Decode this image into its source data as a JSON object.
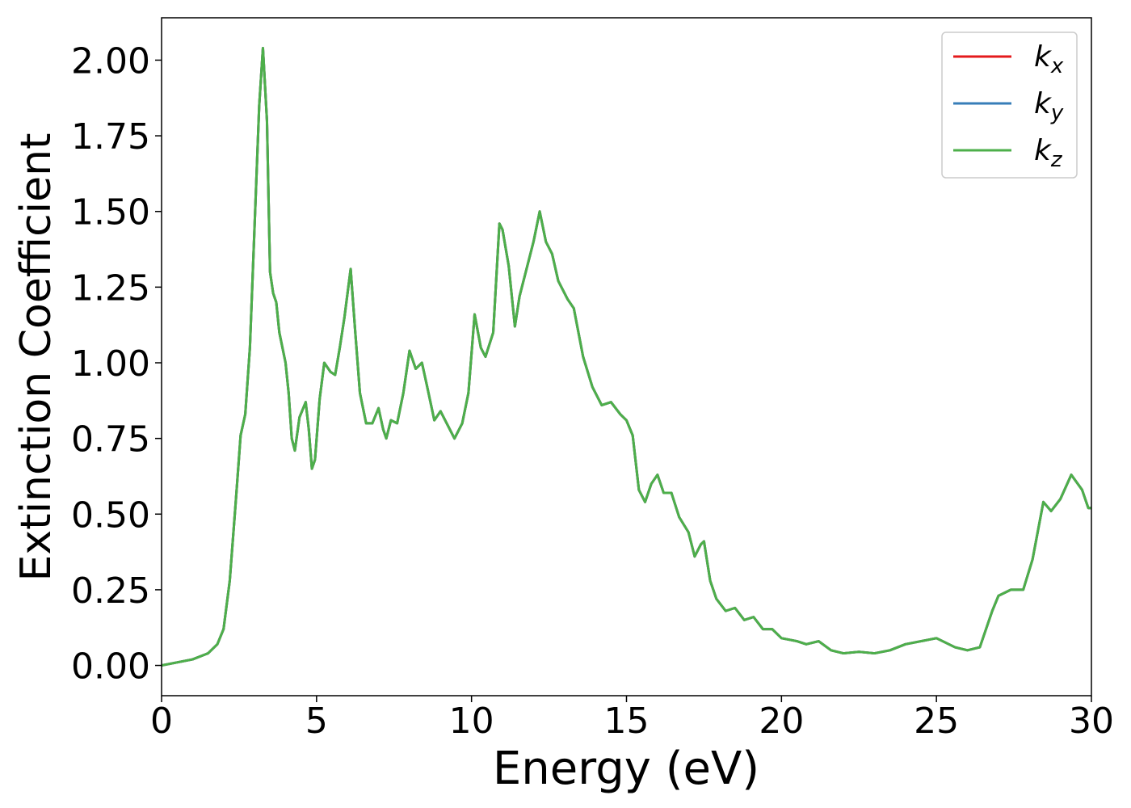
{
  "chart_data": {
    "type": "line",
    "xlabel": "Energy (eV)",
    "ylabel": "Extinction Coefficient",
    "x": [
      0,
      0.5,
      1,
      1.5,
      1.8,
      2.0,
      2.2,
      2.4,
      2.55,
      2.7,
      2.85,
      3.0,
      3.15,
      3.27,
      3.4,
      3.5,
      3.6,
      3.7,
      3.8,
      4.0,
      4.1,
      4.2,
      4.3,
      4.45,
      4.65,
      4.75,
      4.85,
      4.95,
      5.1,
      5.25,
      5.45,
      5.6,
      5.75,
      5.9,
      6.1,
      6.25,
      6.4,
      6.6,
      6.8,
      7.0,
      7.15,
      7.25,
      7.4,
      7.6,
      7.8,
      8.0,
      8.2,
      8.4,
      8.55,
      8.8,
      9.0,
      9.2,
      9.45,
      9.7,
      9.9,
      10.1,
      10.3,
      10.45,
      10.7,
      10.9,
      11.0,
      11.2,
      11.4,
      11.55,
      11.8,
      12.0,
      12.2,
      12.4,
      12.6,
      12.8,
      13.1,
      13.3,
      13.6,
      13.9,
      14.2,
      14.5,
      14.8,
      15.0,
      15.2,
      15.4,
      15.6,
      15.8,
      16.0,
      16.2,
      16.45,
      16.7,
      17.0,
      17.2,
      17.4,
      17.5,
      17.7,
      17.9,
      18.2,
      18.5,
      18.8,
      19.1,
      19.4,
      19.7,
      20.0,
      20.5,
      20.8,
      21.2,
      21.6,
      22.0,
      22.5,
      23.0,
      23.5,
      24.0,
      24.5,
      25.0,
      25.6,
      26.0,
      26.4,
      26.8,
      27.0,
      27.4,
      27.8,
      28.1,
      28.45,
      28.7,
      29.0,
      29.35,
      29.7,
      29.9,
      30
    ],
    "series": [
      {
        "name": "kx",
        "color": "#e41a1c",
        "values": [
          0,
          0.01,
          0.02,
          0.04,
          0.07,
          0.12,
          0.28,
          0.55,
          0.76,
          0.83,
          1.05,
          1.45,
          1.85,
          2.04,
          1.8,
          1.3,
          1.23,
          1.2,
          1.1,
          1.0,
          0.9,
          0.75,
          0.71,
          0.82,
          0.87,
          0.78,
          0.65,
          0.68,
          0.88,
          1.0,
          0.97,
          0.96,
          1.05,
          1.15,
          1.31,
          1.1,
          0.9,
          0.8,
          0.8,
          0.85,
          0.78,
          0.75,
          0.81,
          0.8,
          0.9,
          1.04,
          0.98,
          1.0,
          0.93,
          0.81,
          0.84,
          0.8,
          0.75,
          0.8,
          0.9,
          1.16,
          1.05,
          1.02,
          1.1,
          1.46,
          1.44,
          1.32,
          1.12,
          1.22,
          1.32,
          1.4,
          1.5,
          1.4,
          1.36,
          1.27,
          1.21,
          1.18,
          1.02,
          0.92,
          0.86,
          0.87,
          0.83,
          0.81,
          0.76,
          0.58,
          0.54,
          0.6,
          0.63,
          0.57,
          0.57,
          0.49,
          0.44,
          0.36,
          0.4,
          0.41,
          0.28,
          0.22,
          0.18,
          0.19,
          0.15,
          0.16,
          0.12,
          0.12,
          0.09,
          0.08,
          0.07,
          0.08,
          0.05,
          0.04,
          0.045,
          0.04,
          0.05,
          0.07,
          0.08,
          0.09,
          0.06,
          0.05,
          0.06,
          0.18,
          0.23,
          0.25,
          0.25,
          0.35,
          0.54,
          0.51,
          0.55,
          0.63,
          0.58,
          0.52,
          0.52
        ]
      },
      {
        "name": "ky",
        "color": "#377eb8",
        "values": [
          0,
          0.01,
          0.02,
          0.04,
          0.07,
          0.12,
          0.28,
          0.55,
          0.76,
          0.83,
          1.05,
          1.45,
          1.85,
          2.04,
          1.8,
          1.3,
          1.23,
          1.2,
          1.1,
          1.0,
          0.9,
          0.75,
          0.71,
          0.82,
          0.87,
          0.78,
          0.65,
          0.68,
          0.88,
          1.0,
          0.97,
          0.96,
          1.05,
          1.15,
          1.31,
          1.1,
          0.9,
          0.8,
          0.8,
          0.85,
          0.78,
          0.75,
          0.81,
          0.8,
          0.9,
          1.04,
          0.98,
          1.0,
          0.93,
          0.81,
          0.84,
          0.8,
          0.75,
          0.8,
          0.9,
          1.16,
          1.05,
          1.02,
          1.1,
          1.46,
          1.44,
          1.32,
          1.12,
          1.22,
          1.32,
          1.4,
          1.5,
          1.4,
          1.36,
          1.27,
          1.21,
          1.18,
          1.02,
          0.92,
          0.86,
          0.87,
          0.83,
          0.81,
          0.76,
          0.58,
          0.54,
          0.6,
          0.63,
          0.57,
          0.57,
          0.49,
          0.44,
          0.36,
          0.4,
          0.41,
          0.28,
          0.22,
          0.18,
          0.19,
          0.15,
          0.16,
          0.12,
          0.12,
          0.09,
          0.08,
          0.07,
          0.08,
          0.05,
          0.04,
          0.045,
          0.04,
          0.05,
          0.07,
          0.08,
          0.09,
          0.06,
          0.05,
          0.06,
          0.18,
          0.23,
          0.25,
          0.25,
          0.35,
          0.54,
          0.51,
          0.55,
          0.63,
          0.58,
          0.52,
          0.52
        ]
      },
      {
        "name": "kz",
        "color": "#4daf4a",
        "values": [
          0,
          0.01,
          0.02,
          0.04,
          0.07,
          0.12,
          0.28,
          0.55,
          0.76,
          0.83,
          1.05,
          1.45,
          1.85,
          2.04,
          1.8,
          1.3,
          1.23,
          1.2,
          1.1,
          1.0,
          0.9,
          0.75,
          0.71,
          0.82,
          0.87,
          0.78,
          0.65,
          0.68,
          0.88,
          1.0,
          0.97,
          0.96,
          1.05,
          1.15,
          1.31,
          1.1,
          0.9,
          0.8,
          0.8,
          0.85,
          0.78,
          0.75,
          0.81,
          0.8,
          0.9,
          1.04,
          0.98,
          1.0,
          0.93,
          0.81,
          0.84,
          0.8,
          0.75,
          0.8,
          0.9,
          1.16,
          1.05,
          1.02,
          1.1,
          1.46,
          1.44,
          1.32,
          1.12,
          1.22,
          1.32,
          1.4,
          1.5,
          1.4,
          1.36,
          1.27,
          1.21,
          1.18,
          1.02,
          0.92,
          0.86,
          0.87,
          0.83,
          0.81,
          0.76,
          0.58,
          0.54,
          0.6,
          0.63,
          0.57,
          0.57,
          0.49,
          0.44,
          0.36,
          0.4,
          0.41,
          0.28,
          0.22,
          0.18,
          0.19,
          0.15,
          0.16,
          0.12,
          0.12,
          0.09,
          0.08,
          0.07,
          0.08,
          0.05,
          0.04,
          0.045,
          0.04,
          0.05,
          0.07,
          0.08,
          0.09,
          0.06,
          0.05,
          0.06,
          0.18,
          0.23,
          0.25,
          0.25,
          0.35,
          0.54,
          0.51,
          0.55,
          0.63,
          0.58,
          0.52,
          0.52
        ]
      }
    ],
    "xlim": [
      0,
      30
    ],
    "xticks": [
      0,
      5,
      10,
      15,
      20,
      25,
      30
    ],
    "ylim": [
      -0.1,
      2.14
    ],
    "yticks": [
      {
        "value": 0,
        "label": "0.00"
      },
      {
        "value": 0.25,
        "label": "0.25"
      },
      {
        "value": 0.5,
        "label": "0.50"
      },
      {
        "value": 0.75,
        "label": "0.75"
      },
      {
        "value": 1,
        "label": "1.00"
      },
      {
        "value": 1.25,
        "label": "1.25"
      },
      {
        "value": 1.5,
        "label": "1.50"
      },
      {
        "value": 1.75,
        "label": "1.75"
      },
      {
        "value": 2,
        "label": "2.00"
      }
    ],
    "grid": false,
    "legend": "upper right"
  }
}
